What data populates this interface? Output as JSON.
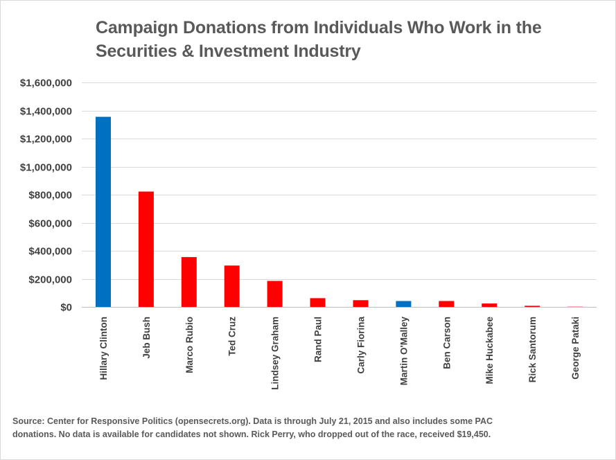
{
  "chart_data": {
    "type": "bar",
    "title": "Campaign Donations from Individuals Who Work in the Securities & Investment Industry",
    "xlabel": "",
    "ylabel": "",
    "categories": [
      "Hillary Clinton",
      "Jeb Bush",
      "Marco Rubio",
      "Ted Cruz",
      "Lindsey Graham",
      "Rand Paul",
      "Carly Fiorina",
      "Martin O'Malley",
      "Ben Carson",
      "Mike Huckabee",
      "Rick Santorum",
      "George Pataki"
    ],
    "values": [
      1355000,
      822000,
      355000,
      295000,
      185000,
      62000,
      48000,
      42000,
      42000,
      24000,
      8000,
      1500
    ],
    "bar_colors": [
      "#0070c0",
      "#ff0000",
      "#ff0000",
      "#ff0000",
      "#ff0000",
      "#ff0000",
      "#ff0000",
      "#0070c0",
      "#ff0000",
      "#ff0000",
      "#ff0000",
      "#ff0000"
    ],
    "ylim": [
      0,
      1600000
    ],
    "yticks": [
      0,
      200000,
      400000,
      600000,
      800000,
      1000000,
      1200000,
      1400000,
      1600000
    ],
    "ytick_labels": [
      "$0",
      "$200,000",
      "$400,000",
      "$600,000",
      "$800,000",
      "$1,000,000",
      "$1,200,000",
      "$1,400,000",
      "$1,600,000"
    ],
    "grid": true,
    "legend": "none",
    "source_note": "Source:  Center for Responsive Politics (opensecrets.org). Data is through July 21, 2015 and also includes some PAC donations. No data is available for candidates not shown. Rick Perry, who dropped out of the race, received $19,450."
  },
  "colors": {
    "text": "#595959",
    "tick_text": "#404040",
    "gridline": "#d9d9d9",
    "axis": "#bfbfbf"
  }
}
